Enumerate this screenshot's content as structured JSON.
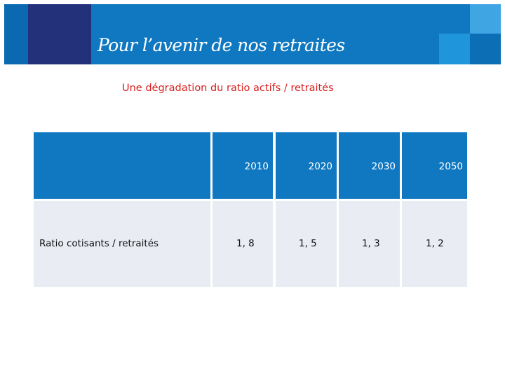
{
  "banner": {
    "title": "Pour l’avenir de nos retraites"
  },
  "slide": {
    "title": "Une dégradation du ratio actifs / retraités"
  },
  "table": {
    "columns": [
      "",
      "2010",
      "2020",
      "2030",
      "2050"
    ],
    "rows": [
      {
        "label": "Ratio cotisants / retraités",
        "values": [
          "1, 8",
          "1, 5",
          "1, 3",
          "1, 2"
        ]
      }
    ]
  },
  "colors": {
    "banner": "#0f78c0",
    "navy": "#23307a",
    "title_red": "#d71e1e",
    "row_bg": "#e9edf3"
  }
}
